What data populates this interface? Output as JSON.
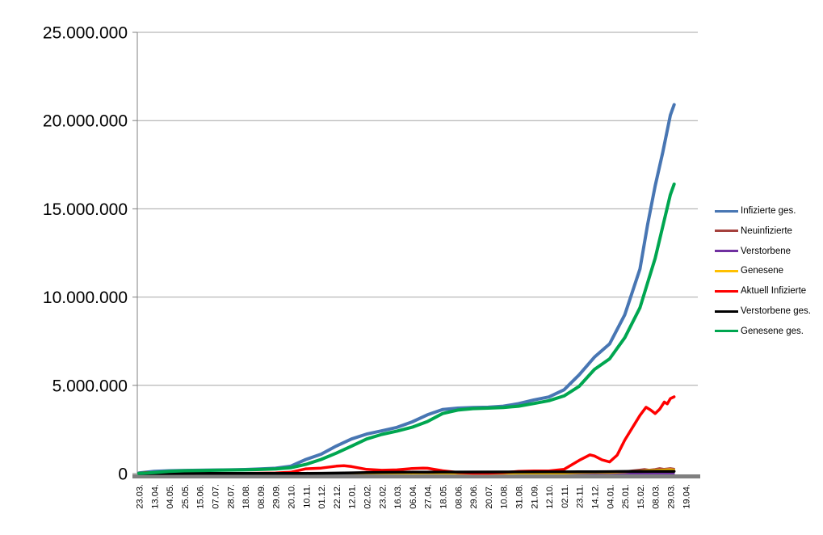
{
  "chart_data": {
    "type": "line",
    "title": "",
    "xlabel": "",
    "ylabel": "",
    "grid": true,
    "legend_position": "right",
    "ylim": [
      0,
      25000000
    ],
    "y_axis_ticks": [
      {
        "label": "25.000.000",
        "value": 25
      },
      {
        "label": "20.000.000",
        "value": 20
      },
      {
        "label": "15.000.000",
        "value": 15
      },
      {
        "label": "10.000.000",
        "value": 10
      },
      {
        "label": "5.000.000",
        "value": 5
      },
      {
        "label": "0",
        "value": 0
      }
    ],
    "x_axis_labels": [
      "23.03.",
      "13.04.",
      "04.05.",
      "25.05.",
      "15.06.",
      "07.07.",
      "28.07.",
      "18.08.",
      "08.09.",
      "29.09.",
      "20.10.",
      "10.11.",
      "01.12.",
      "22.12.",
      "12.01.",
      "02.02.",
      "23.02.",
      "16.03.",
      "06.04.",
      "27.04.",
      "18.05.",
      "08.06.",
      "29.06.",
      "20.07.",
      "10.08.",
      "31.08.",
      "21.09.",
      "12.10.",
      "02.11.",
      "23.11.",
      "14.12.",
      "04.01.",
      "25.01.",
      "15.02.",
      "08.03.",
      "29.03.",
      "19.04."
    ],
    "value_unit": "millions",
    "legend": [
      {
        "name": "Infizierte ges.",
        "color": "#4876B3"
      },
      {
        "name": "Neuinfizierte",
        "color": "#A5413D"
      },
      {
        "name": "Verstorbene",
        "color": "#7030A0"
      },
      {
        "name": "Genesene",
        "color": "#FFC000"
      },
      {
        "name": "Aktuell Infizierte",
        "color": "#FF0000"
      },
      {
        "name": "Verstorbene ges.",
        "color": "#000000"
      },
      {
        "name": "Genesene ges.",
        "color": "#00A650"
      }
    ],
    "series": [
      {
        "name": "Infizierte ges.",
        "color": "#4876B3",
        "width": 4,
        "points": [
          [
            0,
            0.03
          ],
          [
            1,
            0.13
          ],
          [
            2,
            0.16
          ],
          [
            3,
            0.18
          ],
          [
            4,
            0.19
          ],
          [
            5,
            0.2
          ],
          [
            6,
            0.21
          ],
          [
            7,
            0.23
          ],
          [
            8,
            0.26
          ],
          [
            9,
            0.3
          ],
          [
            10,
            0.42
          ],
          [
            11,
            0.8
          ],
          [
            12,
            1.1
          ],
          [
            13,
            1.56
          ],
          [
            14,
            1.96
          ],
          [
            15,
            2.24
          ],
          [
            16,
            2.42
          ],
          [
            17,
            2.62
          ],
          [
            18,
            2.93
          ],
          [
            19,
            3.33
          ],
          [
            20,
            3.63
          ],
          [
            21,
            3.71
          ],
          [
            22,
            3.74
          ],
          [
            23,
            3.76
          ],
          [
            24,
            3.82
          ],
          [
            25,
            3.96
          ],
          [
            26,
            4.17
          ],
          [
            27,
            4.34
          ],
          [
            28,
            4.75
          ],
          [
            29,
            5.6
          ],
          [
            30,
            6.6
          ],
          [
            31,
            7.35
          ],
          [
            32,
            9.0
          ],
          [
            33,
            11.6
          ],
          [
            33.5,
            14.1
          ],
          [
            34,
            16.3
          ],
          [
            34.5,
            18.2
          ],
          [
            35,
            20.3
          ],
          [
            35.25,
            20.9
          ]
        ]
      },
      {
        "name": "Neuinfizierte",
        "color": "#A5413D",
        "width": 2.5,
        "points": [
          [
            0,
            0.003
          ],
          [
            2,
            0.002
          ],
          [
            4,
            0.001
          ],
          [
            6,
            0.001
          ],
          [
            8,
            0.002
          ],
          [
            10,
            0.006
          ],
          [
            11,
            0.018
          ],
          [
            12,
            0.018
          ],
          [
            13,
            0.026
          ],
          [
            14,
            0.016
          ],
          [
            15,
            0.008
          ],
          [
            16,
            0.008
          ],
          [
            17,
            0.012
          ],
          [
            18,
            0.02
          ],
          [
            19,
            0.022
          ],
          [
            20,
            0.008
          ],
          [
            21,
            0.003
          ],
          [
            22,
            0.001
          ],
          [
            23,
            0.002
          ],
          [
            24,
            0.006
          ],
          [
            25,
            0.012
          ],
          [
            26,
            0.011
          ],
          [
            27,
            0.012
          ],
          [
            28,
            0.026
          ],
          [
            29,
            0.06
          ],
          [
            30,
            0.06
          ],
          [
            31,
            0.046
          ],
          [
            32,
            0.12
          ],
          [
            32.5,
            0.17
          ],
          [
            33,
            0.22
          ],
          [
            33.3,
            0.25
          ],
          [
            33.6,
            0.21
          ],
          [
            34,
            0.25
          ],
          [
            34.3,
            0.3
          ],
          [
            34.6,
            0.26
          ],
          [
            35,
            0.3
          ],
          [
            35.25,
            0.27
          ]
        ]
      },
      {
        "name": "Verstorbene",
        "color": "#7030A0",
        "width": 2,
        "points": [
          [
            0,
            0.001
          ],
          [
            10,
            0.001
          ],
          [
            20,
            0.002
          ],
          [
            30,
            0.002
          ],
          [
            35.25,
            0.002
          ]
        ]
      },
      {
        "name": "Genesene",
        "color": "#FFC000",
        "width": 2.5,
        "points": [
          [
            0,
            0.002
          ],
          [
            4,
            0.001
          ],
          [
            8,
            0.001
          ],
          [
            10,
            0.004
          ],
          [
            11,
            0.012
          ],
          [
            12,
            0.015
          ],
          [
            13,
            0.02
          ],
          [
            14,
            0.018
          ],
          [
            15,
            0.012
          ],
          [
            16,
            0.008
          ],
          [
            17,
            0.01
          ],
          [
            18,
            0.015
          ],
          [
            19,
            0.02
          ],
          [
            20,
            0.012
          ],
          [
            21,
            0.004
          ],
          [
            22,
            0.001
          ],
          [
            23,
            0.001
          ],
          [
            24,
            0.004
          ],
          [
            25,
            0.008
          ],
          [
            26,
            0.008
          ],
          [
            27,
            0.008
          ],
          [
            28,
            0.015
          ],
          [
            29,
            0.04
          ],
          [
            30,
            0.05
          ],
          [
            31,
            0.045
          ],
          [
            32,
            0.08
          ],
          [
            33,
            0.15
          ],
          [
            33.5,
            0.19
          ],
          [
            34,
            0.2
          ],
          [
            34.5,
            0.22
          ],
          [
            35,
            0.24
          ],
          [
            35.25,
            0.22
          ]
        ]
      },
      {
        "name": "Aktuell Infizierte",
        "color": "#FF0000",
        "width": 3.5,
        "points": [
          [
            0,
            0.02
          ],
          [
            0.5,
            0.055
          ],
          [
            1,
            0.06
          ],
          [
            1.5,
            0.05
          ],
          [
            2,
            0.035
          ],
          [
            3,
            0.015
          ],
          [
            4,
            0.01
          ],
          [
            5,
            0.008
          ],
          [
            6,
            0.01
          ],
          [
            7,
            0.015
          ],
          [
            8,
            0.022
          ],
          [
            9,
            0.035
          ],
          [
            10,
            0.08
          ],
          [
            11,
            0.27
          ],
          [
            12,
            0.31
          ],
          [
            13,
            0.42
          ],
          [
            13.5,
            0.445
          ],
          [
            14,
            0.4
          ],
          [
            15,
            0.24
          ],
          [
            16,
            0.19
          ],
          [
            17,
            0.21
          ],
          [
            18,
            0.29
          ],
          [
            18.7,
            0.31
          ],
          [
            19,
            0.3
          ],
          [
            20,
            0.16
          ],
          [
            21,
            0.065
          ],
          [
            22,
            0.025
          ],
          [
            23,
            0.022
          ],
          [
            24,
            0.055
          ],
          [
            25,
            0.125
          ],
          [
            26,
            0.15
          ],
          [
            27,
            0.148
          ],
          [
            28,
            0.24
          ],
          [
            29,
            0.75
          ],
          [
            29.7,
            1.06
          ],
          [
            30,
            1.0
          ],
          [
            30.5,
            0.78
          ],
          [
            31,
            0.66
          ],
          [
            31.5,
            1.05
          ],
          [
            32,
            1.9
          ],
          [
            32.5,
            2.6
          ],
          [
            33,
            3.3
          ],
          [
            33.4,
            3.76
          ],
          [
            33.7,
            3.6
          ],
          [
            34,
            3.4
          ],
          [
            34.3,
            3.65
          ],
          [
            34.6,
            4.05
          ],
          [
            34.8,
            3.95
          ],
          [
            35,
            4.25
          ],
          [
            35.25,
            4.35
          ]
        ]
      },
      {
        "name": "Verstorbene ges.",
        "color": "#000000",
        "width": 3.5,
        "points": [
          [
            0,
            0.001
          ],
          [
            4,
            0.009
          ],
          [
            8,
            0.009
          ],
          [
            10,
            0.01
          ],
          [
            11,
            0.012
          ],
          [
            12,
            0.018
          ],
          [
            13,
            0.028
          ],
          [
            14,
            0.043
          ],
          [
            15,
            0.059
          ],
          [
            16,
            0.069
          ],
          [
            17,
            0.074
          ],
          [
            18,
            0.078
          ],
          [
            19,
            0.083
          ],
          [
            20,
            0.087
          ],
          [
            21,
            0.089
          ],
          [
            24,
            0.092
          ],
          [
            27,
            0.094
          ],
          [
            28,
            0.096
          ],
          [
            29,
            0.1
          ],
          [
            30,
            0.106
          ],
          [
            31,
            0.112
          ],
          [
            32,
            0.117
          ],
          [
            33,
            0.121
          ],
          [
            34,
            0.125
          ],
          [
            35.25,
            0.129
          ]
        ]
      },
      {
        "name": "Genesene ges.",
        "color": "#00A650",
        "width": 4,
        "points": [
          [
            0,
            0.01
          ],
          [
            1,
            0.06
          ],
          [
            2,
            0.13
          ],
          [
            3,
            0.16
          ],
          [
            4,
            0.175
          ],
          [
            5,
            0.19
          ],
          [
            6,
            0.2
          ],
          [
            7,
            0.21
          ],
          [
            8,
            0.235
          ],
          [
            9,
            0.26
          ],
          [
            10,
            0.33
          ],
          [
            11,
            0.52
          ],
          [
            12,
            0.8
          ],
          [
            13,
            1.16
          ],
          [
            14,
            1.55
          ],
          [
            15,
            1.96
          ],
          [
            16,
            2.22
          ],
          [
            17,
            2.41
          ],
          [
            18,
            2.63
          ],
          [
            19,
            2.95
          ],
          [
            20,
            3.4
          ],
          [
            21,
            3.6
          ],
          [
            22,
            3.68
          ],
          [
            23,
            3.71
          ],
          [
            24,
            3.74
          ],
          [
            25,
            3.82
          ],
          [
            26,
            3.97
          ],
          [
            27,
            4.13
          ],
          [
            28,
            4.4
          ],
          [
            29,
            4.95
          ],
          [
            30,
            5.9
          ],
          [
            31,
            6.5
          ],
          [
            32,
            7.7
          ],
          [
            33,
            9.4
          ],
          [
            33.5,
            10.8
          ],
          [
            34,
            12.2
          ],
          [
            34.5,
            14.0
          ],
          [
            35,
            15.8
          ],
          [
            35.25,
            16.4
          ]
        ]
      }
    ]
  },
  "style": {
    "gridline_color": "#A6A6A6",
    "axis_color": "#808080",
    "background_color": "#FFFFFF"
  }
}
